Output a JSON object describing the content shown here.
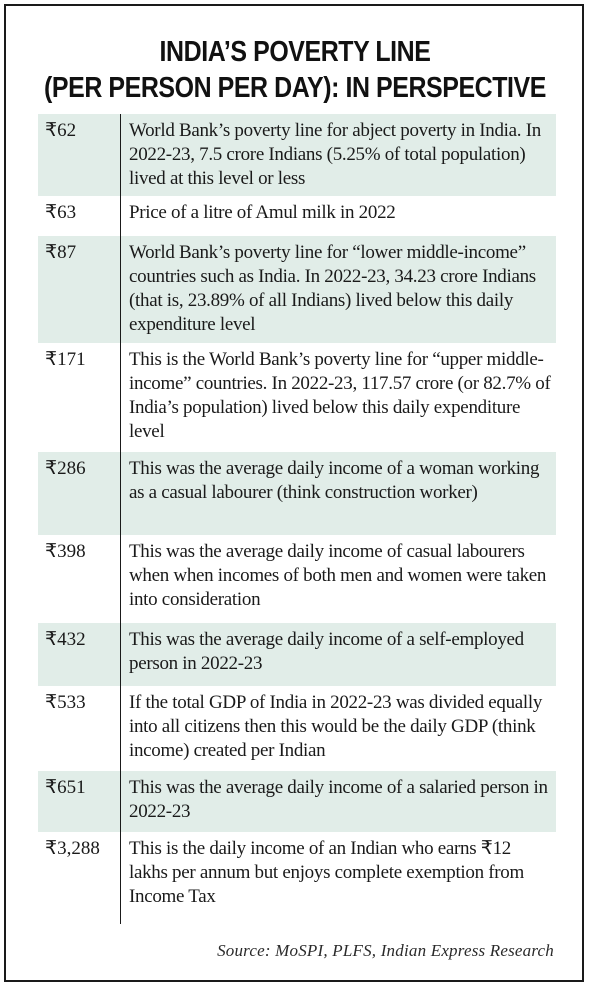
{
  "title": {
    "line1": "INDIA’S POVERTY LINE",
    "line2": "(PER PERSON PER DAY): IN PERSPECTIVE"
  },
  "rows": [
    {
      "price": "₹62",
      "description": "World Bank’s poverty line for abject poverty in India. In 2022-23, 7.5 crore Indians (5.25% of total population) lived at this level or less",
      "shaded": true
    },
    {
      "price": "₹63",
      "description": "Price of a litre of Amul milk in 2022",
      "shaded": false
    },
    {
      "price": "₹87",
      "description": "World Bank’s poverty line for “lower middle-income” countries such as India. In 2022-23, 34.23 crore Indians (that is, 23.89% of all Indians) lived below this daily expenditure level",
      "shaded": true
    },
    {
      "price": "₹171",
      "description": "This is the World Bank’s poverty line for “upper middle-income” countries. In 2022-23, 117.57 crore (or 82.7% of India’s population) lived below this daily expenditure level",
      "shaded": false
    },
    {
      "price": "₹286",
      "description": "This was the average daily income of a woman working as a casual labourer (think construction worker)",
      "shaded": true
    },
    {
      "price": "₹398",
      "description": "This was the average daily income of casual labourers when when incomes of both men and women were taken into consideration",
      "shaded": false
    },
    {
      "price": "₹432",
      "description": "This was the average daily income of a self-employed person in 2022-23",
      "shaded": true
    },
    {
      "price": "₹533",
      "description": "If the total GDP of India in 2022-23 was divided equally into all citizens then this would be the daily GDP (think income) created per Indian",
      "shaded": false
    },
    {
      "price": "₹651",
      "description": "This was the average daily income of a salaried person in 2022-23",
      "shaded": true
    },
    {
      "price": "₹3,288",
      "description": "This is the daily income of an Indian who earns ₹12 lakhs per annum but enjoys complete exemption from Income Tax",
      "shaded": false
    }
  ],
  "source": "Source: MoSPI, PLFS, Indian Express Research"
}
